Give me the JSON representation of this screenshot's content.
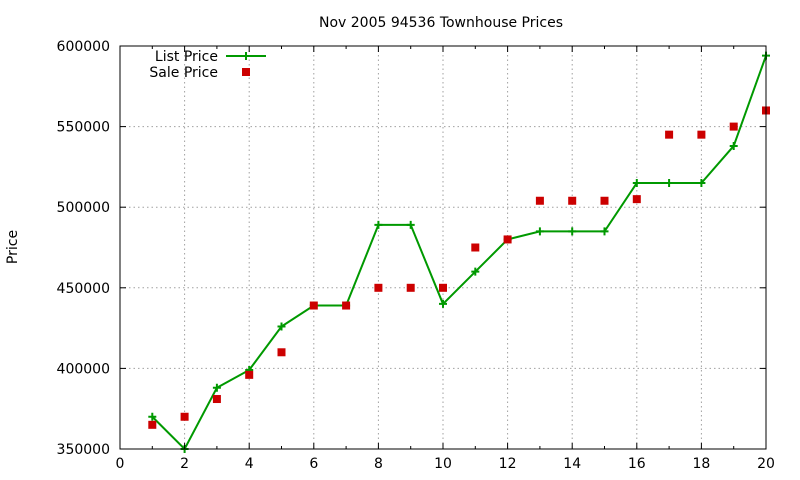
{
  "chart_data": {
    "type": "line",
    "title": "Nov 2005 94536 Townhouse Prices",
    "xlabel": "",
    "ylabel": "Price",
    "xlim": [
      0,
      20
    ],
    "ylim": [
      350000,
      600000
    ],
    "x_ticks": [
      0,
      2,
      4,
      6,
      8,
      10,
      12,
      14,
      16,
      18,
      20
    ],
    "y_ticks": [
      350000,
      400000,
      450000,
      500000,
      550000,
      600000
    ],
    "x_tick_labels": [
      "0",
      "2",
      "4",
      "6",
      "8",
      "10",
      "12",
      "14",
      "16",
      "18",
      "20"
    ],
    "y_tick_labels": [
      "350000",
      "400000",
      "450000",
      "500000",
      "550000",
      "600000"
    ],
    "grid": true,
    "legend_position": "top-left",
    "series": [
      {
        "name": "List Price",
        "style": "linespoints",
        "marker": "plus",
        "color": "#009900",
        "x": [
          1,
          2,
          3,
          4,
          5,
          6,
          7,
          8,
          9,
          10,
          11,
          12,
          13,
          14,
          15,
          16,
          17,
          18,
          19,
          20
        ],
        "y": [
          370000,
          350000,
          388000,
          399000,
          426000,
          439000,
          439000,
          489000,
          489000,
          440000,
          460000,
          480000,
          485000,
          485000,
          485000,
          515000,
          515000,
          515000,
          538000,
          594000
        ]
      },
      {
        "name": "Sale Price",
        "style": "points",
        "marker": "square",
        "color": "#cc0000",
        "x": [
          1,
          2,
          3,
          4,
          5,
          6,
          7,
          8,
          9,
          10,
          11,
          12,
          13,
          14,
          15,
          16,
          17,
          18,
          19,
          20
        ],
        "y": [
          365000,
          370000,
          381000,
          396000,
          410000,
          439000,
          439000,
          450000,
          450000,
          450000,
          475000,
          480000,
          504000,
          504000,
          504000,
          505000,
          545000,
          545000,
          550000,
          560000
        ]
      }
    ]
  }
}
